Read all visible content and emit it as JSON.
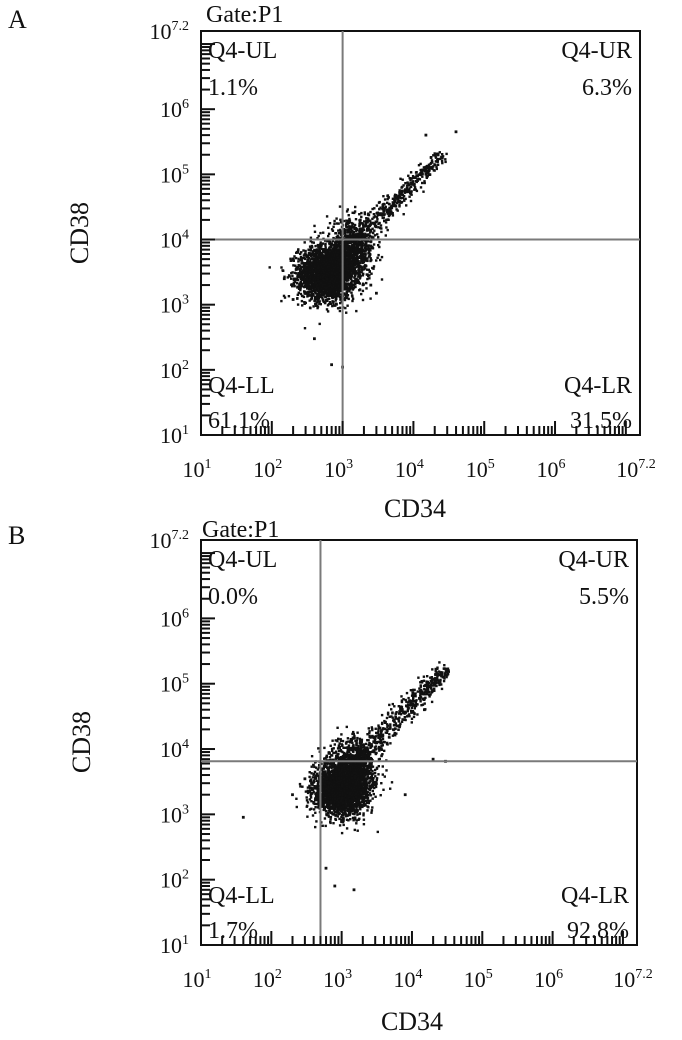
{
  "figure": {
    "background": "#ffffff",
    "ink": "#111111",
    "gate_line_color": "#7a7a7a"
  },
  "chart_data": [
    {
      "type": "scatter",
      "panel_label": "A",
      "title": "Gate:P1",
      "xlabel": "CD34",
      "ylabel": "CD38",
      "x_scale": "log10",
      "y_scale": "log10",
      "xlim": [
        10,
        15848931.92
      ],
      "ylim": [
        10,
        15848931.92
      ],
      "x_ticks": [
        {
          "base": "10",
          "exp": "1"
        },
        {
          "base": "10",
          "exp": "2"
        },
        {
          "base": "10",
          "exp": "3"
        },
        {
          "base": "10",
          "exp": "4"
        },
        {
          "base": "10",
          "exp": "5"
        },
        {
          "base": "10",
          "exp": "6"
        },
        {
          "base": "10",
          "exp": "7.2"
        }
      ],
      "y_ticks": [
        {
          "base": "10",
          "exp": "1"
        },
        {
          "base": "10",
          "exp": "2"
        },
        {
          "base": "10",
          "exp": "3"
        },
        {
          "base": "10",
          "exp": "4"
        },
        {
          "base": "10",
          "exp": "5"
        },
        {
          "base": "10",
          "exp": "6"
        },
        {
          "base": "10",
          "exp": "7.2"
        }
      ],
      "gate_x": 1000,
      "gate_y": 10000,
      "quadrants": [
        {
          "name": "Q4-UL",
          "percent": "1.1%",
          "position": "top-left"
        },
        {
          "name": "Q4-UR",
          "percent": "6.3%",
          "position": "top-right"
        },
        {
          "name": "Q4-LL",
          "percent": "61.1%",
          "position": "bottom-left"
        },
        {
          "name": "Q4-LR",
          "percent": "31.5%",
          "position": "bottom-right"
        }
      ],
      "populations": [
        {
          "center_x": 600,
          "center_y": 3000,
          "spread_log_x": 0.2,
          "spread_log_y": 0.2,
          "count": 2600
        },
        {
          "center_x": 1300,
          "center_y": 7000,
          "spread_log_x": 0.17,
          "spread_log_y": 0.22,
          "count": 800
        },
        {
          "diag_from": [
            1500,
            10000
          ],
          "diag_to": [
            25000,
            200000
          ],
          "width_log": 0.1,
          "count": 420
        }
      ],
      "outliers": [
        [
          15000,
          400000
        ],
        [
          40000,
          450000
        ],
        [
          150,
          2500
        ],
        [
          250,
          2000
        ],
        [
          400,
          300
        ],
        [
          700,
          120
        ],
        [
          1000,
          110
        ],
        [
          200,
          1200
        ],
        [
          3000,
          1500
        ],
        [
          2500,
          2000
        ]
      ]
    },
    {
      "type": "scatter",
      "panel_label": "B",
      "title": "Gate:P1",
      "xlabel": "CD34",
      "ylabel": "CD38",
      "x_scale": "log10",
      "y_scale": "log10",
      "xlim": [
        10,
        15848931.92
      ],
      "ylim": [
        10,
        15848931.92
      ],
      "x_ticks": [
        {
          "base": "10",
          "exp": "1"
        },
        {
          "base": "10",
          "exp": "2"
        },
        {
          "base": "10",
          "exp": "3"
        },
        {
          "base": "10",
          "exp": "4"
        },
        {
          "base": "10",
          "exp": "5"
        },
        {
          "base": "10",
          "exp": "6"
        },
        {
          "base": "10",
          "exp": "7.2"
        }
      ],
      "y_ticks": [
        {
          "base": "10",
          "exp": "1"
        },
        {
          "base": "10",
          "exp": "2"
        },
        {
          "base": "10",
          "exp": "3"
        },
        {
          "base": "10",
          "exp": "4"
        },
        {
          "base": "10",
          "exp": "5"
        },
        {
          "base": "10",
          "exp": "6"
        },
        {
          "base": "10",
          "exp": "7.2"
        }
      ],
      "gate_x": 500,
      "gate_y": 6500,
      "quadrants": [
        {
          "name": "Q4-UL",
          "percent": "0.0%",
          "position": "top-left"
        },
        {
          "name": "Q4-UR",
          "percent": "5.5%",
          "position": "top-right"
        },
        {
          "name": "Q4-LL",
          "percent": "1.7%",
          "position": "bottom-left"
        },
        {
          "name": "Q4-LR",
          "percent": "92.8%",
          "position": "bottom-right"
        }
      ],
      "populations": [
        {
          "center_x": 1000,
          "center_y": 2500,
          "spread_log_x": 0.19,
          "spread_log_y": 0.2,
          "count": 2600
        },
        {
          "center_x": 1500,
          "center_y": 6000,
          "spread_log_x": 0.17,
          "spread_log_y": 0.2,
          "count": 700
        },
        {
          "diag_from": [
            2000,
            9000
          ],
          "diag_to": [
            30000,
            160000
          ],
          "width_log": 0.11,
          "count": 450
        }
      ],
      "outliers": [
        [
          40,
          900
        ],
        [
          200,
          2000
        ],
        [
          300,
          3500
        ],
        [
          600,
          150
        ],
        [
          800,
          80
        ],
        [
          1500,
          70
        ],
        [
          20000,
          7000
        ],
        [
          30000,
          6500
        ],
        [
          8000,
          2000
        ],
        [
          15000,
          40000
        ]
      ]
    }
  ]
}
